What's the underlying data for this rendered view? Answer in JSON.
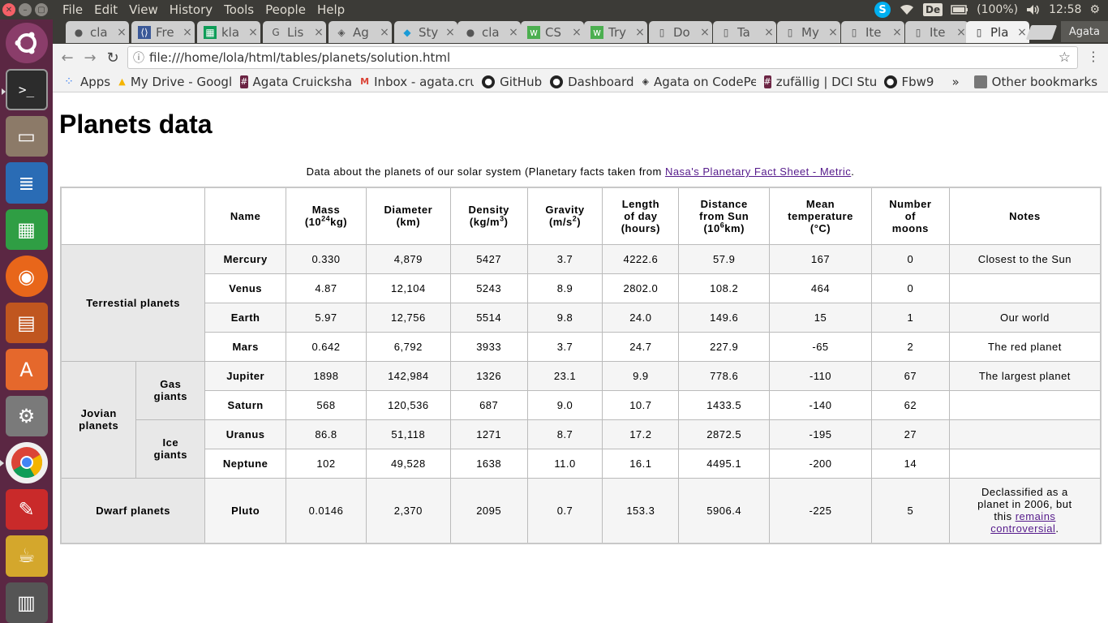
{
  "system": {
    "menus": [
      "File",
      "Edit",
      "View",
      "History",
      "Tools",
      "People",
      "Help"
    ],
    "keyboard": "De",
    "battery": "(100%)",
    "clock": "12:58"
  },
  "browser": {
    "tabs": [
      {
        "label": "cla",
        "icon": "github-icon"
      },
      {
        "label": "Fre",
        "icon": "code-icon"
      },
      {
        "label": "kla",
        "icon": "sheets-icon"
      },
      {
        "label": "Lis",
        "icon": "google-icon"
      },
      {
        "label": "Ag",
        "icon": "codepen-icon"
      },
      {
        "label": "Sty",
        "icon": "bird-icon"
      },
      {
        "label": "cla",
        "icon": "github-icon"
      },
      {
        "label": "CS",
        "icon": "w3-icon"
      },
      {
        "label": "Try",
        "icon": "w3-icon"
      },
      {
        "label": "Do",
        "icon": "document-icon"
      },
      {
        "label": "Ta",
        "icon": "document-icon"
      },
      {
        "label": "My",
        "icon": "document-icon"
      },
      {
        "label": "Ite",
        "icon": "document-icon"
      },
      {
        "label": "Ite",
        "icon": "document-icon"
      },
      {
        "label": "Pla",
        "icon": "document-icon"
      }
    ],
    "profile": "Agata",
    "url": "file:///home/lola/html/tables/planets/solution.html",
    "bookmarks": [
      {
        "label": "Apps",
        "icon": "apps-icon"
      },
      {
        "label": "My Drive - Googl",
        "icon": "drive-icon"
      },
      {
        "label": "Agata Cruicksha",
        "icon": "hash-icon"
      },
      {
        "label": "Inbox - agata.cru",
        "icon": "gmail-icon"
      },
      {
        "label": "GitHub",
        "icon": "github-icon"
      },
      {
        "label": "Dashboard",
        "icon": "github-icon"
      },
      {
        "label": "Agata on CodePe",
        "icon": "codepen-icon"
      },
      {
        "label": "zufällig | DCI Stu",
        "icon": "hash-icon"
      },
      {
        "label": "Fbw9",
        "icon": "github-icon"
      }
    ],
    "overflow": "»",
    "other_bookmarks": "Other bookmarks"
  },
  "page": {
    "title": "Planets data",
    "caption_text": "Data about the planets of our solar system (Planetary facts taken from ",
    "caption_link": "Nasa's Planetary Fact Sheet - Metric",
    "caption_end": ".",
    "headers": {
      "name": "Name",
      "mass": "Mass",
      "mass_unit_a": "(10",
      "mass_unit_sup": "24",
      "mass_unit_b": "kg)",
      "diameter": "Diameter",
      "diameter_unit": "(km)",
      "density": "Density",
      "density_unit_a": "(kg/m",
      "density_unit_sup": "3",
      "density_unit_b": ")",
      "gravity": "Gravity",
      "gravity_unit_a": "(m/s",
      "gravity_unit_sup": "2",
      "gravity_unit_b": ")",
      "length_day_1": "Length",
      "length_day_2": "of day",
      "length_day_3": "(hours)",
      "distance_1": "Distance",
      "distance_2": "from Sun",
      "distance_unit_a": "(10",
      "distance_unit_sup": "6",
      "distance_unit_b": "km)",
      "temp_1": "Mean",
      "temp_2": "temperature",
      "temp_3": "(°C)",
      "moons_1": "Number",
      "moons_2": "of",
      "moons_3": "moons",
      "notes": "Notes"
    },
    "groups": {
      "terrestial": "Terrestial planets",
      "jovian_1": "Jovian",
      "jovian_2": "planets",
      "gas_1": "Gas",
      "gas_2": "giants",
      "ice_1": "Ice",
      "ice_2": "giants",
      "dwarf": "Dwarf planets"
    },
    "planets": [
      {
        "name": "Mercury",
        "mass": "0.330",
        "diameter": "4,879",
        "density": "5427",
        "gravity": "3.7",
        "day": "4222.6",
        "distance": "57.9",
        "temp": "167",
        "moons": "0",
        "notes": "Closest to the Sun"
      },
      {
        "name": "Venus",
        "mass": "4.87",
        "diameter": "12,104",
        "density": "5243",
        "gravity": "8.9",
        "day": "2802.0",
        "distance": "108.2",
        "temp": "464",
        "moons": "0",
        "notes": ""
      },
      {
        "name": "Earth",
        "mass": "5.97",
        "diameter": "12,756",
        "density": "5514",
        "gravity": "9.8",
        "day": "24.0",
        "distance": "149.6",
        "temp": "15",
        "moons": "1",
        "notes": "Our world"
      },
      {
        "name": "Mars",
        "mass": "0.642",
        "diameter": "6,792",
        "density": "3933",
        "gravity": "3.7",
        "day": "24.7",
        "distance": "227.9",
        "temp": "-65",
        "moons": "2",
        "notes": "The red planet"
      },
      {
        "name": "Jupiter",
        "mass": "1898",
        "diameter": "142,984",
        "density": "1326",
        "gravity": "23.1",
        "day": "9.9",
        "distance": "778.6",
        "temp": "-110",
        "moons": "67",
        "notes": "The largest planet"
      },
      {
        "name": "Saturn",
        "mass": "568",
        "diameter": "120,536",
        "density": "687",
        "gravity": "9.0",
        "day": "10.7",
        "distance": "1433.5",
        "temp": "-140",
        "moons": "62",
        "notes": ""
      },
      {
        "name": "Uranus",
        "mass": "86.8",
        "diameter": "51,118",
        "density": "1271",
        "gravity": "8.7",
        "day": "17.2",
        "distance": "2872.5",
        "temp": "-195",
        "moons": "27",
        "notes": ""
      },
      {
        "name": "Neptune",
        "mass": "102",
        "diameter": "49,528",
        "density": "1638",
        "gravity": "11.0",
        "day": "16.1",
        "distance": "4495.1",
        "temp": "-200",
        "moons": "14",
        "notes": ""
      },
      {
        "name": "Pluto",
        "mass": "0.0146",
        "diameter": "2,370",
        "density": "2095",
        "gravity": "0.7",
        "day": "153.3",
        "distance": "5906.4",
        "temp": "-225",
        "moons": "5",
        "notes": ""
      }
    ],
    "pluto_note_1": "Declassified as a",
    "pluto_note_2": "planet in 2006, but",
    "pluto_note_3": "this ",
    "pluto_note_link_1": "remains",
    "pluto_note_link_2": "controversial",
    "pluto_note_end": "."
  },
  "colors": {
    "launcher": "#5b2743",
    "topbar": "#3c3b37",
    "link": "#551a8b"
  }
}
